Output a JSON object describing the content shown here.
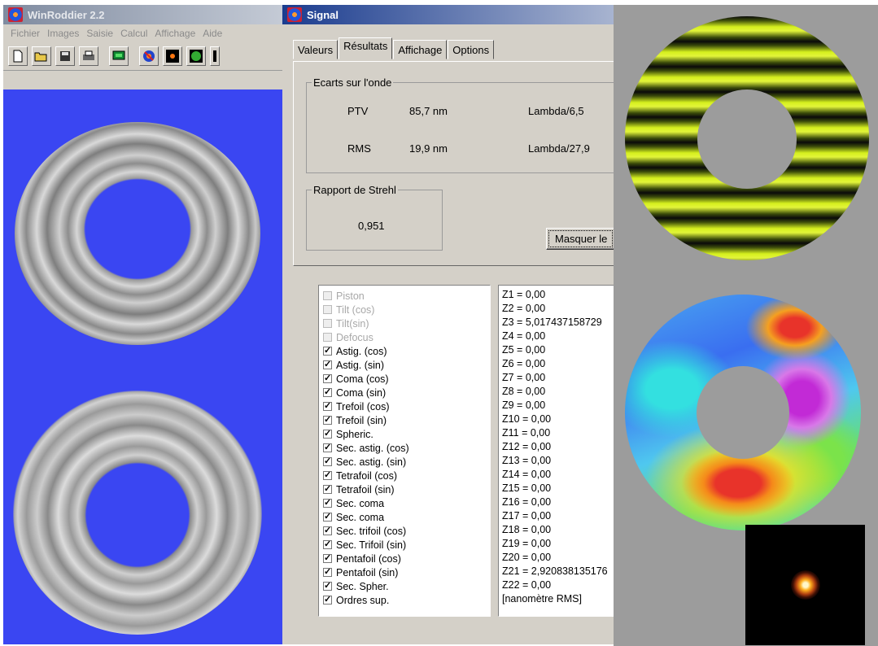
{
  "main_window": {
    "title": "WinRoddier 2.2",
    "menu": [
      "Fichier",
      "Images",
      "Saisie",
      "Calcul",
      "Affichage",
      "Aide"
    ],
    "toolbar_icons": [
      "new-file-icon",
      "open-folder-icon",
      "save-icon",
      "print-icon",
      "monitor-icon",
      "roddier-icon",
      "defocus-image-icon",
      "sphere-icon",
      "more-icon"
    ],
    "image_bg": "#3a46f2"
  },
  "signal_dialog": {
    "title": "Signal",
    "tabs": [
      "Valeurs",
      "Résultats",
      "Affichage",
      "Options"
    ],
    "active_tab": "Résultats",
    "wavefront_group": {
      "legend": "Ecarts sur l'onde",
      "ptv_label": "PTV",
      "ptv_value": "85,7 nm",
      "ptv_lambda": "Lambda/6,5",
      "rms_label": "RMS",
      "rms_value": "19,9 nm",
      "rms_lambda": "Lambda/27,9"
    },
    "strehl_group": {
      "legend": "Rapport de Strehl",
      "value": "0,951"
    },
    "hide_button": "Masquer le",
    "aberrations": [
      {
        "label": "Piston",
        "checked": false,
        "enabled": false
      },
      {
        "label": "Tilt (cos)",
        "checked": false,
        "enabled": false
      },
      {
        "label": "Tilt(sin)",
        "checked": false,
        "enabled": false
      },
      {
        "label": "Defocus",
        "checked": false,
        "enabled": false
      },
      {
        "label": "Astig. (cos)",
        "checked": true,
        "enabled": true
      },
      {
        "label": "Astig. (sin)",
        "checked": true,
        "enabled": true
      },
      {
        "label": "Coma (cos)",
        "checked": true,
        "enabled": true
      },
      {
        "label": "Coma (sin)",
        "checked": true,
        "enabled": true
      },
      {
        "label": "Trefoil (cos)",
        "checked": true,
        "enabled": true
      },
      {
        "label": "Trefoil (sin)",
        "checked": true,
        "enabled": true
      },
      {
        "label": "Spheric.",
        "checked": true,
        "enabled": true
      },
      {
        "label": "Sec. astig. (cos)",
        "checked": true,
        "enabled": true
      },
      {
        "label": "Sec. astig. (sin)",
        "checked": true,
        "enabled": true
      },
      {
        "label": "Tetrafoil (cos)",
        "checked": true,
        "enabled": true
      },
      {
        "label": "Tetrafoil (sin)",
        "checked": true,
        "enabled": true
      },
      {
        "label": "Sec. coma",
        "checked": true,
        "enabled": true
      },
      {
        "label": "Sec. coma",
        "checked": true,
        "enabled": true
      },
      {
        "label": "Sec. trifoil (cos)",
        "checked": true,
        "enabled": true
      },
      {
        "label": "Sec. Trifoil (sin)",
        "checked": true,
        "enabled": true
      },
      {
        "label": "Pentafoil (cos)",
        "checked": true,
        "enabled": true
      },
      {
        "label": "Pentafoil (sin)",
        "checked": true,
        "enabled": true
      },
      {
        "label": "Sec. Spher.",
        "checked": true,
        "enabled": true
      },
      {
        "label": "Ordres sup.",
        "checked": true,
        "enabled": true
      }
    ],
    "zernike_values": [
      "Z1 = 0,00",
      "Z2 = 0,00",
      "Z3 = 5,017437158729",
      "Z4 = 0,00",
      "Z5 = 0,00",
      "Z6 = 0,00",
      "Z7 = 0,00",
      "Z8 = 0,00",
      "Z9 = 0,00",
      "Z10 = 0,00",
      "Z11 = 0,00",
      "Z12 = 0,00",
      "Z13 = 0,00",
      "Z14 = 0,00",
      "Z15 = 0,00",
      "Z16 = 0,00",
      "Z17 = 0,00",
      "Z18 = 0,00",
      "Z19 = 0,00",
      "Z20 = 0,00",
      "Z21 = 2,920838135176",
      "Z22 = 0,00",
      "[nanomètre RMS]"
    ]
  },
  "visuals": {
    "fringe_colors": [
      "#d6f01e",
      "#0a0a0a"
    ],
    "panel_bg": "#9c9c9c"
  }
}
